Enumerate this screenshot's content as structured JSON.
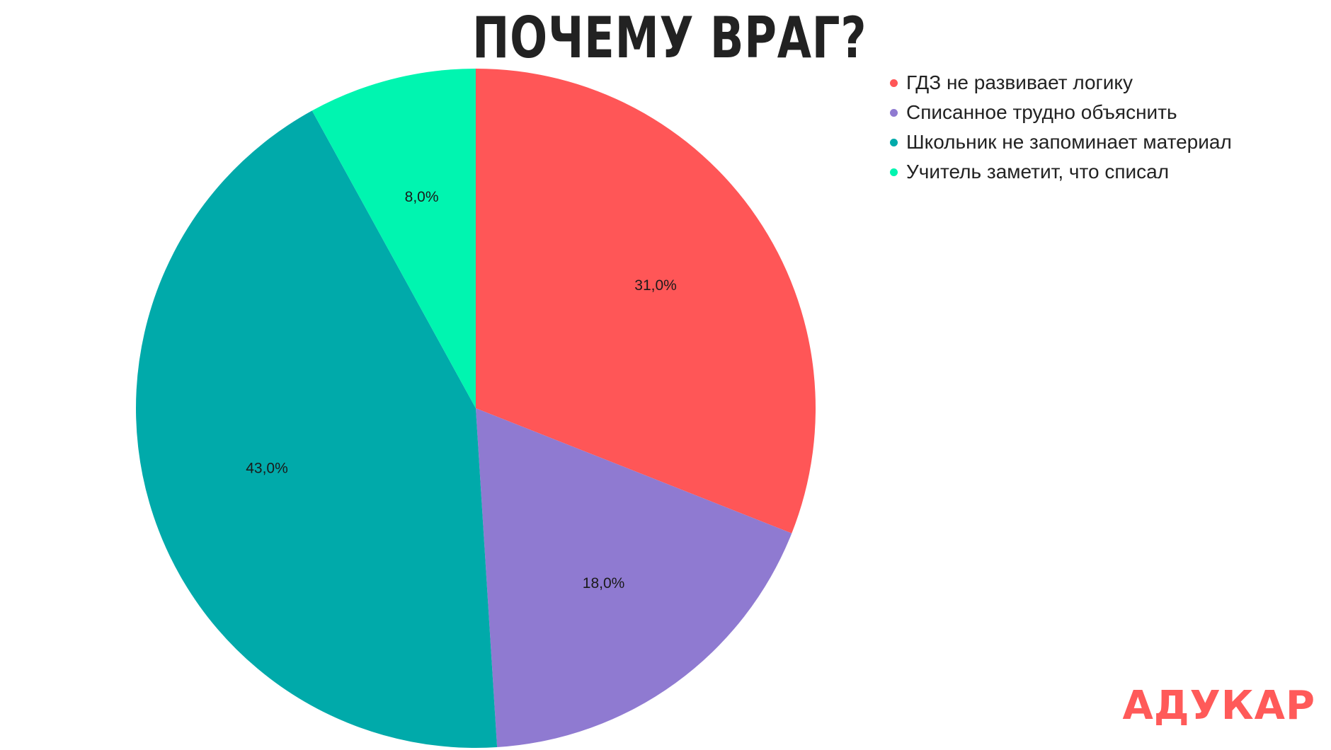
{
  "chart_data": {
    "type": "pie",
    "title": "ПОЧЕМУ ВРАГ?",
    "categories": [
      "ГДЗ не развивает логику",
      "Списанное трудно объяснить",
      "Школьник не запоминает материал",
      "Учитель заметит, что списал"
    ],
    "values": [
      31.0,
      18.0,
      43.0,
      8.0
    ],
    "value_labels": [
      "31,0%",
      "18,0%",
      "43,0%",
      "8,0%"
    ],
    "colors": [
      "#ff5657",
      "#8f7ad1",
      "#00aaaa",
      "#00f5b0"
    ],
    "legend_position": "top-right",
    "start_angle": "12 o'clock",
    "direction": "clockwise"
  },
  "brand": {
    "logo_text": "АДУКАР",
    "color": "#ff5a59"
  }
}
